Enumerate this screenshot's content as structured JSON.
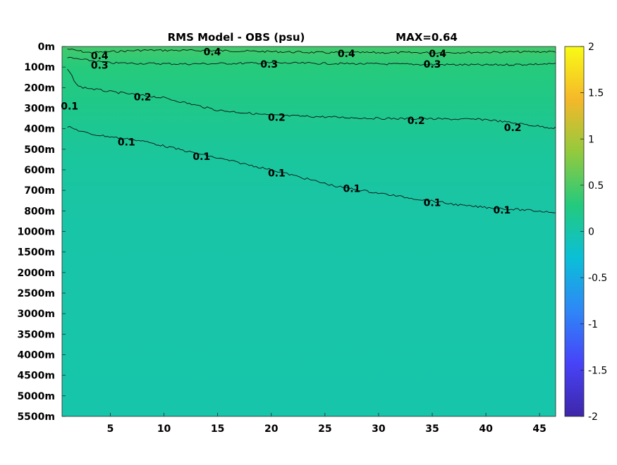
{
  "chart_data": {
    "type": "heatmap",
    "title": "RMS Model - OBS (psu)",
    "max_label": "MAX=0.64",
    "xlabel": "",
    "ylabel": "",
    "xlim": [
      0.5,
      46.5
    ],
    "x_ticks": [
      5,
      10,
      15,
      20,
      25,
      30,
      35,
      40,
      45
    ],
    "y_ticks": [
      "0m",
      "100m",
      "200m",
      "300m",
      "400m",
      "500m",
      "600m",
      "700m",
      "800m",
      "1000m",
      "1500m",
      "2000m",
      "2500m",
      "3000m",
      "3500m",
      "4000m",
      "4500m",
      "5000m",
      "5500m"
    ],
    "colorbar": {
      "min": -2,
      "max": 2,
      "ticks": [
        "2",
        "1.5",
        "1",
        "0.5",
        "0",
        "-0.5",
        "-1",
        "-1.5",
        "-2"
      ],
      "colormap": [
        "#3e26a8",
        "#4743f8",
        "#2e87f7",
        "#0bbfd7",
        "#23ca7d",
        "#93ca3d",
        "#f5b82a",
        "#f9fb15"
      ]
    },
    "value_bands": [
      {
        "depth": "0m",
        "value": 0.45
      },
      {
        "depth": "100m",
        "value": 0.3
      },
      {
        "depth": "200m",
        "value": 0.25
      },
      {
        "depth": "300m",
        "value": 0.2
      },
      {
        "depth": "400m",
        "value": 0.15
      },
      {
        "depth": "500m",
        "value": 0.1
      },
      {
        "depth": "600m",
        "value": 0.07
      },
      {
        "depth": "700m",
        "value": 0.05
      },
      {
        "depth": "800m",
        "value": 0.04
      },
      {
        "depth": "1000m",
        "value": 0.02
      },
      {
        "depth": "5500m",
        "value": 0.0
      }
    ],
    "contours": [
      {
        "level": "0.4",
        "depth_index": [
          [
            1,
            0.12
          ],
          [
            3,
            0.3
          ],
          [
            8,
            0.18
          ],
          [
            15,
            0.2
          ],
          [
            25,
            0.3
          ],
          [
            35,
            0.3
          ],
          [
            46,
            0.25
          ]
        ]
      },
      {
        "level": "0.3",
        "depth_index": [
          [
            1,
            0.55
          ],
          [
            5,
            0.8
          ],
          [
            12,
            0.85
          ],
          [
            20,
            0.8
          ],
          [
            30,
            0.85
          ],
          [
            40,
            0.9
          ],
          [
            46,
            0.85
          ]
        ]
      },
      {
        "level": "0.2",
        "depth_index": [
          [
            1,
            1.1
          ],
          [
            2,
            1.95
          ],
          [
            5,
            2.2
          ],
          [
            10,
            2.5
          ],
          [
            15,
            3.1
          ],
          [
            20,
            3.35
          ],
          [
            30,
            3.5
          ],
          [
            40,
            3.55
          ],
          [
            46,
            3.95
          ]
        ]
      },
      {
        "level": "0.1",
        "depth_index": [
          [
            1,
            3.9
          ],
          [
            3,
            4.25
          ],
          [
            8,
            4.6
          ],
          [
            13,
            5.2
          ],
          [
            20,
            6.0
          ],
          [
            26,
            6.8
          ],
          [
            32,
            7.3
          ],
          [
            38,
            7.75
          ],
          [
            46,
            8.05
          ]
        ]
      }
    ],
    "contour_labels": [
      {
        "text": "0.4",
        "x": 4,
        "depth_index": 0.45
      },
      {
        "text": "0.4",
        "x": 14.5,
        "depth_index": 0.25
      },
      {
        "text": "0.4",
        "x": 27,
        "depth_index": 0.35
      },
      {
        "text": "0.4",
        "x": 35.5,
        "depth_index": 0.35
      },
      {
        "text": "0.3",
        "x": 4,
        "depth_index": 0.9
      },
      {
        "text": "0.3",
        "x": 19.8,
        "depth_index": 0.85
      },
      {
        "text": "0.3",
        "x": 35,
        "depth_index": 0.85
      },
      {
        "text": "0.2",
        "x": 8,
        "depth_index": 2.45
      },
      {
        "text": "0.2",
        "x": 20.5,
        "depth_index": 3.45
      },
      {
        "text": "0.2",
        "x": 33.5,
        "depth_index": 3.6
      },
      {
        "text": "0.2",
        "x": 42.5,
        "depth_index": 3.95
      },
      {
        "text": "0.1",
        "x": 1.2,
        "depth_index": 2.9
      },
      {
        "text": "0.1",
        "x": 6.5,
        "depth_index": 4.65
      },
      {
        "text": "0.1",
        "x": 13.5,
        "depth_index": 5.35
      },
      {
        "text": "0.1",
        "x": 20.5,
        "depth_index": 6.15
      },
      {
        "text": "0.1",
        "x": 27.5,
        "depth_index": 6.9
      },
      {
        "text": "0.1",
        "x": 35,
        "depth_index": 7.6
      },
      {
        "text": "0.1",
        "x": 41.5,
        "depth_index": 7.95
      }
    ]
  }
}
